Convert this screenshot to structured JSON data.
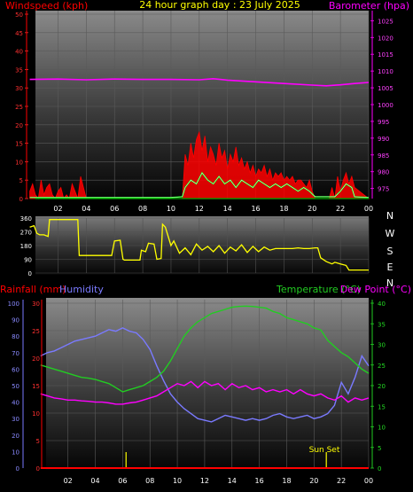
{
  "header": {
    "windspeed_label": "Windspeed (kph)",
    "title": "24 hour graph day : 23 July 2025",
    "barometer_label": "Barometer (hpa)"
  },
  "mid_labels": {
    "rainfall_label": "Rainfall (mm)",
    "humidity_label": "Humidity",
    "temperature_label": "Temperature (°C)",
    "dewpoint_label": "Dew Point (°C)"
  },
  "annotations": {
    "sunset_label": "Sun Set"
  },
  "colors": {
    "wind": "#ff0000",
    "gust_fill": "#ff0000",
    "avg_wind": "#00ff00",
    "wind_white": "#ffffff",
    "barometer": "#ff00ff",
    "direction": "#ffff00",
    "rain": "#ff0000",
    "humidity": "#7a7aff",
    "temperature": "#22cc22",
    "dewpoint": "#ff00ff",
    "daylight": "#ffff00"
  },
  "chart_data": [
    {
      "type": "line",
      "name": "wind-barometer",
      "x_ticks": [
        "02",
        "04",
        "06",
        "08",
        "10",
        "12",
        "14",
        "16",
        "18",
        "20",
        "22",
        "00"
      ],
      "left_axis": {
        "ticks": [
          0,
          5,
          10,
          15,
          20,
          25,
          30,
          35,
          40,
          45,
          50
        ],
        "ylim": [
          0,
          50
        ]
      },
      "right_axis": {
        "ticks": [
          975,
          980,
          985,
          990,
          995,
          1000,
          1005,
          1010,
          1015,
          1020,
          1025
        ],
        "ylim": [
          972,
          1028
        ]
      },
      "series": [
        {
          "id": "barometer",
          "axis": "right",
          "x": [
            0,
            2,
            4,
            6,
            8,
            10,
            12,
            13,
            14,
            16,
            18,
            20,
            21,
            22,
            23,
            24
          ],
          "y": [
            1007.5,
            1007.6,
            1007.4,
            1007.6,
            1007.5,
            1007.5,
            1007.4,
            1007.7,
            1007.3,
            1006.8,
            1006.3,
            1005.8,
            1005.6,
            1005.9,
            1006.3,
            1006.6
          ]
        },
        {
          "id": "gust",
          "axis": "left",
          "style": "filled",
          "x": [
            0,
            0.2,
            0.4,
            0.6,
            0.8,
            1.0,
            1.2,
            1.4,
            1.6,
            1.8,
            2.0,
            2.2,
            2.4,
            2.6,
            2.8,
            3.0,
            3.2,
            3.4,
            3.6,
            4,
            6,
            8,
            10,
            10.8,
            11.0,
            11.2,
            11.4,
            11.6,
            11.8,
            12.0,
            12.2,
            12.4,
            12.6,
            12.8,
            13.0,
            13.2,
            13.4,
            13.6,
            13.8,
            14.0,
            14.2,
            14.4,
            14.6,
            14.8,
            15.0,
            15.2,
            15.4,
            15.6,
            15.8,
            16.0,
            16.2,
            16.4,
            16.6,
            16.8,
            17.0,
            17.2,
            17.4,
            17.6,
            17.8,
            18.0,
            18.2,
            18.4,
            18.6,
            18.8,
            19.0,
            19.2,
            19.4,
            19.6,
            19.8,
            20.0,
            20.2,
            20.4,
            20.6,
            20.8,
            21.0,
            21.2,
            21.4,
            21.6,
            21.8,
            22.0,
            22.2,
            22.4,
            22.6,
            22.8,
            23.0,
            24
          ],
          "y": [
            2,
            4,
            1,
            0,
            5,
            1,
            3,
            4,
            1,
            0,
            2,
            3,
            0,
            1,
            0,
            4,
            2,
            0,
            6,
            0,
            0,
            0,
            0,
            0,
            12,
            9,
            15,
            11,
            16,
            18,
            13,
            17,
            10,
            14,
            12,
            9,
            15,
            11,
            13,
            8,
            12,
            10,
            14,
            9,
            11,
            8,
            10,
            7,
            9,
            6,
            8,
            7,
            9,
            6,
            8,
            5,
            7,
            6,
            7,
            5,
            6,
            5,
            6,
            4,
            5,
            5,
            4,
            3,
            5,
            2,
            0,
            0,
            0,
            0,
            0,
            0,
            3,
            0,
            6,
            2,
            5,
            7,
            4,
            6,
            3,
            0
          ]
        },
        {
          "id": "avg_wind",
          "axis": "left",
          "x": [
            0,
            2,
            4,
            6,
            8,
            10,
            10.8,
            11.0,
            11.4,
            11.8,
            12.2,
            12.6,
            13.0,
            13.4,
            13.8,
            14.2,
            14.6,
            15.0,
            15.4,
            15.8,
            16.2,
            16.6,
            17.0,
            17.4,
            17.8,
            18.2,
            18.6,
            19.0,
            19.4,
            19.8,
            20.2,
            21.6,
            22.0,
            22.4,
            22.8,
            23.0,
            24
          ],
          "y": [
            0.3,
            0.3,
            0.3,
            0.3,
            0.3,
            0.3,
            0.5,
            3,
            5,
            4,
            7,
            5,
            4,
            6,
            4,
            5,
            3,
            5,
            4,
            3,
            5,
            4,
            3,
            4,
            3,
            4,
            3,
            2,
            3,
            2,
            0.5,
            0.5,
            2,
            4,
            3,
            0.5,
            0.3
          ]
        }
      ]
    },
    {
      "type": "line",
      "name": "wind-direction",
      "x_ticks": [
        "02",
        "04",
        "06",
        "08",
        "10",
        "12",
        "14",
        "16",
        "18",
        "20",
        "22",
        "00"
      ],
      "left_axis": {
        "ticks": [
          0,
          90,
          180,
          270,
          360
        ],
        "ylim": [
          0,
          360
        ]
      },
      "right_axis_labels": [
        "N",
        "W",
        "S",
        "E",
        "N"
      ],
      "series": [
        {
          "id": "direction",
          "x": [
            0,
            0.3,
            0.5,
            0.7,
            1.0,
            1.3,
            1.4,
            3.4,
            3.5,
            5.8,
            6.0,
            6.4,
            6.6,
            6.7,
            7.8,
            7.9,
            8.2,
            8.4,
            8.8,
            9.0,
            9.3,
            9.4,
            9.6,
            10.0,
            10.2,
            10.6,
            11.0,
            11.4,
            11.8,
            12.2,
            12.6,
            13.0,
            13.4,
            13.8,
            14.2,
            14.6,
            15.0,
            15.4,
            15.8,
            16.2,
            16.6,
            17.0,
            17.4,
            17.8,
            18.2,
            18.6,
            19.0,
            19.4,
            19.8,
            20.2,
            20.4,
            20.6,
            21.0,
            21.4,
            21.6,
            22.0,
            22.4,
            22.6,
            23.0,
            24
          ],
          "y": [
            300,
            310,
            260,
            250,
            250,
            240,
            350,
            350,
            115,
            115,
            210,
            215,
            90,
            85,
            85,
            150,
            140,
            195,
            190,
            90,
            95,
            320,
            300,
            180,
            210,
            130,
            165,
            120,
            190,
            150,
            175,
            140,
            180,
            130,
            170,
            145,
            185,
            135,
            175,
            140,
            170,
            150,
            160,
            160,
            160,
            160,
            165,
            160,
            160,
            165,
            165,
            100,
            75,
            60,
            70,
            60,
            50,
            20,
            20,
            20
          ]
        }
      ]
    },
    {
      "type": "line",
      "name": "temperature-humidity-rain",
      "x_ticks": [
        "02",
        "04",
        "06",
        "08",
        "10",
        "12",
        "14",
        "16",
        "18",
        "20",
        "22",
        "00"
      ],
      "rain_axis": {
        "ticks": [
          0,
          5,
          10,
          15,
          20,
          25,
          30
        ],
        "ylim": [
          0,
          30
        ]
      },
      "humidity_axis": {
        "ticks": [
          0,
          10,
          20,
          30,
          40,
          50,
          60,
          70,
          80,
          90,
          100
        ],
        "ylim": [
          0,
          100
        ]
      },
      "temp_axis": {
        "ticks": [
          0,
          5,
          10,
          15,
          20,
          25,
          30,
          35,
          40
        ],
        "ylim": [
          0,
          40
        ]
      },
      "series": [
        {
          "id": "humidity",
          "axis": "humidity",
          "x": [
            0,
            0.5,
            1,
            1.5,
            2,
            2.5,
            3,
            3.5,
            4,
            4.5,
            5,
            5.5,
            6,
            6.5,
            7,
            7.5,
            8,
            8.5,
            9,
            9.5,
            10,
            10.5,
            11,
            11.5,
            12,
            12.5,
            13,
            13.5,
            14,
            14.5,
            15,
            15.5,
            16,
            16.5,
            17,
            17.5,
            18,
            18.5,
            19,
            19.5,
            20,
            20.5,
            21,
            21.5,
            22,
            22.5,
            23,
            23.5,
            24
          ],
          "y": [
            68,
            70,
            71,
            73,
            75,
            77,
            78,
            79,
            80,
            82,
            84,
            83,
            85,
            83,
            82,
            78,
            72,
            62,
            53,
            45,
            40,
            36,
            33,
            30,
            29,
            28,
            30,
            32,
            31,
            30,
            29,
            30,
            29,
            30,
            32,
            33,
            31,
            30,
            31,
            32,
            30,
            31,
            33,
            38,
            52,
            45,
            55,
            68,
            62
          ]
        },
        {
          "id": "temperature",
          "axis": "temp",
          "x": [
            0,
            0.5,
            1,
            1.5,
            2,
            2.5,
            3,
            3.5,
            4,
            4.5,
            5,
            5.5,
            6,
            6.5,
            7,
            7.5,
            8,
            8.5,
            9,
            9.5,
            10,
            10.5,
            11,
            11.5,
            12,
            12.5,
            13,
            13.5,
            14,
            14.5,
            15,
            15.5,
            16,
            16.5,
            17,
            17.5,
            18,
            18.5,
            19,
            19.5,
            20,
            20.5,
            21,
            21.5,
            22,
            22.5,
            23,
            23.5,
            24
          ],
          "y": [
            25,
            24.5,
            24,
            23.5,
            23,
            22.5,
            22,
            21.8,
            21.5,
            21,
            20.5,
            19.5,
            18.5,
            19,
            19.5,
            20,
            21,
            22,
            23.5,
            26,
            29,
            32,
            34,
            35.5,
            36.5,
            37.5,
            38,
            38.5,
            39,
            39.2,
            39.3,
            39.2,
            39,
            38.8,
            38,
            37.5,
            36.5,
            36,
            35.5,
            35,
            34,
            33.5,
            31,
            29.5,
            28,
            27,
            25.5,
            24,
            23
          ]
        },
        {
          "id": "dewpoint",
          "axis": "temp",
          "x": [
            0,
            0.5,
            1,
            1.5,
            2,
            2.5,
            3,
            3.5,
            4,
            4.5,
            5,
            5.5,
            6,
            6.5,
            7,
            7.5,
            8,
            8.5,
            9,
            9.5,
            10,
            10.5,
            11,
            11.5,
            12,
            12.5,
            13,
            13.5,
            14,
            14.5,
            15,
            15.5,
            16,
            16.5,
            17,
            17.5,
            18,
            18.5,
            19,
            19.5,
            20,
            20.5,
            21,
            21.5,
            22,
            22.5,
            23,
            23.5,
            24
          ],
          "y": [
            18,
            17.5,
            17,
            16.8,
            16.5,
            16.5,
            16.3,
            16.2,
            16,
            16,
            15.8,
            15.5,
            15.5,
            15.8,
            16,
            16.5,
            17,
            17.5,
            18.5,
            19.5,
            20.5,
            20,
            21,
            19.5,
            21,
            20,
            20.5,
            19,
            20.5,
            19.5,
            20,
            19,
            19.5,
            18.5,
            19,
            18.5,
            19,
            18,
            19,
            18,
            17.5,
            18,
            17,
            16.5,
            17.5,
            16,
            17,
            16.5,
            17
          ]
        },
        {
          "id": "rain",
          "axis": "rain",
          "x": [
            0,
            24
          ],
          "y": [
            0,
            0
          ]
        }
      ],
      "daylight_markers": [
        6.25,
        20.9
      ]
    }
  ]
}
